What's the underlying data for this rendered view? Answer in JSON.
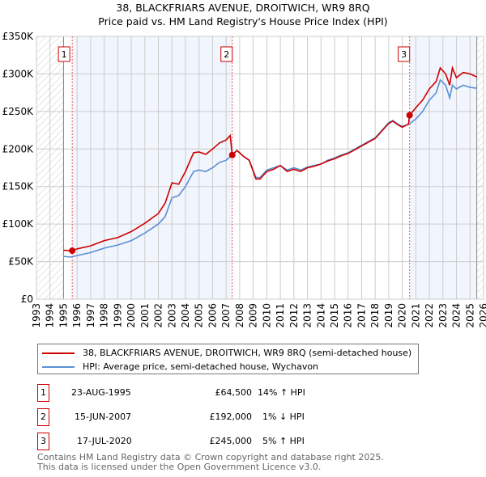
{
  "chart_data": {
    "type": "line",
    "title": "38, BLACKFRIARS AVENUE, DROITWICH, WR9 8RQ",
    "subtitle": "Price paid vs. HM Land Registry's House Price Index (HPI)",
    "xlim": [
      1993,
      2026
    ],
    "ylim": [
      0,
      350000
    ],
    "y_ticks": [
      {
        "v": 0,
        "label": "£0"
      },
      {
        "v": 50000,
        "label": "£50K"
      },
      {
        "v": 100000,
        "label": "£100K"
      },
      {
        "v": 150000,
        "label": "£150K"
      },
      {
        "v": 200000,
        "label": "£200K"
      },
      {
        "v": 250000,
        "label": "£250K"
      },
      {
        "v": 300000,
        "label": "£300K"
      },
      {
        "v": 350000,
        "label": "£350K"
      }
    ],
    "x_ticks": [
      "1993",
      "1994",
      "1995",
      "1996",
      "1997",
      "1998",
      "1999",
      "2000",
      "2001",
      "2002",
      "2003",
      "2004",
      "2005",
      "2006",
      "2007",
      "2008",
      "2009",
      "2010",
      "2011",
      "2012",
      "2013",
      "2014",
      "2015",
      "2016",
      "2017",
      "2018",
      "2019",
      "2020",
      "2021",
      "2022",
      "2023",
      "2024",
      "2025",
      "2026"
    ],
    "grid": true,
    "data_range": [
      1995,
      2025.5
    ],
    "series": [
      {
        "name": "38, BLACKFRIARS AVENUE, DROITWICH, WR9 8RQ (semi-detached house)",
        "color": "#cc0000",
        "x": [
          1995,
          1995.64,
          1996,
          1997,
          1998,
          1999,
          2000,
          2001,
          2002,
          2002.5,
          2003,
          2003.5,
          2004,
          2004.6,
          2005,
          2005.5,
          2006,
          2006.5,
          2007,
          2007.3,
          2007.45,
          2007.8,
          2008.3,
          2008.7,
          2009.2,
          2009.5,
          2010,
          2010.5,
          2011,
          2011.5,
          2012,
          2012.5,
          2013,
          2013.5,
          2014,
          2014.5,
          2015,
          2015.5,
          2016,
          2016.5,
          2017,
          2017.5,
          2018,
          2018.5,
          2019,
          2019.3,
          2019.7,
          2020,
          2020.45,
          2020.54,
          2021,
          2021.5,
          2022,
          2022.5,
          2022.8,
          2023.2,
          2023.5,
          2023.7,
          2024,
          2024.5,
          2025,
          2025.5
        ],
        "y": [
          65,
          64.5,
          67,
          71,
          78,
          82,
          90,
          101,
          114,
          128,
          155,
          153,
          170,
          195,
          196,
          193,
          200,
          208,
          212,
          218,
          192,
          198,
          190,
          185,
          160,
          160,
          170,
          173,
          178,
          170,
          173,
          170,
          175,
          177,
          180,
          184,
          187,
          191,
          194,
          199,
          204,
          209,
          214,
          224,
          234,
          237,
          232,
          229,
          233,
          245,
          255,
          265,
          280,
          290,
          308,
          300,
          285,
          308,
          295,
          302,
          300,
          296
        ]
      },
      {
        "name": "HPI: Average price, semi-detached house, Wychavon",
        "color": "#5b8fd4",
        "x": [
          1995,
          1995.5,
          1996,
          1997,
          1998,
          1999,
          2000,
          2001,
          2002,
          2002.5,
          2003,
          2003.5,
          2004,
          2004.6,
          2005,
          2005.5,
          2006,
          2006.5,
          2007,
          2007.5,
          2007.8,
          2008.3,
          2008.7,
          2009.2,
          2009.5,
          2010,
          2010.5,
          2011,
          2011.5,
          2012,
          2012.5,
          2013,
          2013.5,
          2014,
          2014.5,
          2015,
          2015.5,
          2016,
          2016.5,
          2017,
          2017.5,
          2018,
          2018.5,
          2019,
          2019.3,
          2019.7,
          2020,
          2020.5,
          2021,
          2021.5,
          2022,
          2022.5,
          2022.8,
          2023.2,
          2023.5,
          2023.7,
          2024,
          2024.5,
          2025,
          2025.5
        ],
        "y": [
          57,
          56,
          58,
          62,
          68,
          72,
          78,
          88,
          100,
          110,
          135,
          138,
          150,
          170,
          172,
          170,
          175,
          182,
          185,
          193,
          198,
          190,
          185,
          162,
          162,
          172,
          175,
          178,
          172,
          175,
          172,
          176,
          178,
          180,
          185,
          188,
          192,
          195,
          200,
          205,
          210,
          215,
          225,
          235,
          238,
          233,
          230,
          233,
          240,
          250,
          265,
          275,
          292,
          285,
          268,
          285,
          280,
          285,
          282,
          281
        ]
      }
    ],
    "y_units": "£K",
    "sales": [
      {
        "id": "1",
        "year": 1995.64,
        "price": 64.5,
        "date": "23-AUG-1995",
        "price_label": "£64,500",
        "hpi": "14% ↑ HPI"
      },
      {
        "id": "2",
        "year": 2007.45,
        "price": 192,
        "date": "15-JUN-2007",
        "price_label": "£192,000",
        "hpi": "1% ↓ HPI"
      },
      {
        "id": "3",
        "year": 2020.54,
        "price": 245,
        "date": "17-JUL-2020",
        "price_label": "£245,000",
        "hpi": "5% ↑ HPI"
      }
    ]
  },
  "footer": [
    "Contains HM Land Registry data © Crown copyright and database right 2025.",
    "This data is licensed under the Open Government Licence v3.0."
  ]
}
